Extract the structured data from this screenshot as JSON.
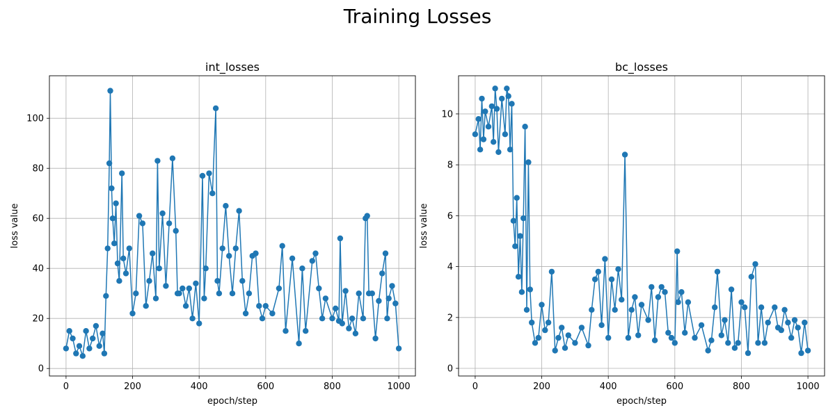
{
  "figure": {
    "title": "Training Losses"
  },
  "chart_data": [
    {
      "type": "line",
      "title": "int_losses",
      "xlabel": "epoch/step",
      "ylabel": "loss value",
      "xlim": [
        -50,
        1050
      ],
      "ylim": [
        -3,
        117
      ],
      "xticks": [
        0,
        200,
        400,
        600,
        800,
        1000
      ],
      "yticks": [
        0,
        20,
        40,
        60,
        80,
        100
      ],
      "grid": true,
      "marker": "circle",
      "series": [
        {
          "color": "#1f77b4",
          "x": [
            0,
            10,
            20,
            30,
            40,
            50,
            60,
            70,
            80,
            90,
            100,
            110,
            115,
            120,
            125,
            130,
            133,
            137,
            140,
            145,
            150,
            155,
            160,
            168,
            172,
            180,
            190,
            200,
            210,
            220,
            230,
            240,
            250,
            260,
            270,
            275,
            280,
            290,
            300,
            310,
            320,
            330,
            335,
            340,
            350,
            360,
            370,
            380,
            390,
            400,
            410,
            415,
            420,
            430,
            440,
            450,
            455,
            460,
            470,
            480,
            490,
            500,
            510,
            520,
            530,
            540,
            550,
            560,
            570,
            580,
            590,
            600,
            620,
            640,
            650,
            660,
            680,
            700,
            710,
            720,
            740,
            750,
            760,
            770,
            780,
            800,
            810,
            820,
            824,
            830,
            840,
            850,
            860,
            870,
            880,
            893,
            900,
            905,
            910,
            920,
            930,
            940,
            950,
            960,
            965,
            970,
            980,
            990,
            1000
          ],
          "y": [
            8,
            15,
            12,
            6,
            9,
            5,
            15,
            8,
            12,
            17,
            9,
            14,
            6,
            29,
            48,
            82,
            111,
            72,
            60,
            50,
            66,
            42,
            35,
            78,
            44,
            38,
            48,
            22,
            30,
            61,
            58,
            25,
            35,
            46,
            28,
            83,
            40,
            62,
            33,
            58,
            84,
            55,
            30,
            30,
            32,
            25,
            32,
            20,
            34,
            18,
            77,
            28,
            40,
            78,
            70,
            104,
            35,
            30,
            48,
            65,
            45,
            30,
            48,
            63,
            35,
            22,
            30,
            45,
            46,
            25,
            20,
            25,
            22,
            32,
            49,
            15,
            44,
            10,
            40,
            15,
            43,
            46,
            32,
            20,
            28,
            20,
            24,
            19,
            52,
            18,
            31,
            16,
            20,
            14,
            30,
            20,
            60,
            61,
            30,
            30,
            12,
            27,
            38,
            46,
            20,
            28,
            33,
            26,
            8
          ]
        }
      ]
    },
    {
      "type": "line",
      "title": "bc_losses",
      "xlabel": "epoch/step",
      "ylabel": "loss value",
      "xlim": [
        -50,
        1050
      ],
      "ylim": [
        -0.3,
        11.5
      ],
      "xticks": [
        0,
        200,
        400,
        600,
        800,
        1000
      ],
      "yticks": [
        0,
        2,
        4,
        6,
        8,
        10
      ],
      "grid": true,
      "marker": "circle",
      "series": [
        {
          "color": "#1f77b4",
          "x": [
            0,
            10,
            15,
            20,
            25,
            30,
            40,
            50,
            55,
            60,
            65,
            70,
            80,
            90,
            95,
            100,
            105,
            110,
            115,
            120,
            125,
            130,
            135,
            140,
            145,
            150,
            155,
            160,
            165,
            170,
            180,
            190,
            200,
            210,
            220,
            230,
            240,
            250,
            260,
            270,
            280,
            300,
            320,
            340,
            350,
            360,
            370,
            380,
            390,
            400,
            410,
            420,
            430,
            440,
            450,
            460,
            470,
            480,
            490,
            500,
            520,
            530,
            540,
            550,
            560,
            570,
            580,
            590,
            600,
            607,
            610,
            620,
            630,
            640,
            660,
            680,
            700,
            710,
            720,
            728,
            740,
            750,
            760,
            770,
            780,
            790,
            800,
            810,
            820,
            830,
            842,
            850,
            860,
            870,
            880,
            900,
            910,
            920,
            930,
            940,
            950,
            960,
            970,
            980,
            990,
            1000
          ],
          "y": [
            9.2,
            9.8,
            8.6,
            10.6,
            9.0,
            10.1,
            9.5,
            10.3,
            8.9,
            11.0,
            10.2,
            8.5,
            10.6,
            9.2,
            11.0,
            10.7,
            8.6,
            10.4,
            5.8,
            4.8,
            6.7,
            3.6,
            5.2,
            3.0,
            5.9,
            9.5,
            2.3,
            8.1,
            3.1,
            1.8,
            1.0,
            1.2,
            2.5,
            1.5,
            1.8,
            3.8,
            0.7,
            1.2,
            1.6,
            0.8,
            1.3,
            1.0,
            1.6,
            0.9,
            2.3,
            3.5,
            3.8,
            1.7,
            4.3,
            1.2,
            3.5,
            2.3,
            3.9,
            2.7,
            8.4,
            1.2,
            2.3,
            2.8,
            1.3,
            2.5,
            1.9,
            3.2,
            1.1,
            2.8,
            3.2,
            3.0,
            1.4,
            1.2,
            1.0,
            4.6,
            2.6,
            3.0,
            1.4,
            2.6,
            1.2,
            1.7,
            0.7,
            1.1,
            2.4,
            3.8,
            1.3,
            1.9,
            1.0,
            3.1,
            0.8,
            1.0,
            2.6,
            2.4,
            0.6,
            3.6,
            4.1,
            1.0,
            2.4,
            1.0,
            1.8,
            2.4,
            1.6,
            1.5,
            2.3,
            1.8,
            1.2,
            1.9,
            1.6,
            0.6,
            1.8,
            0.7
          ]
        }
      ]
    }
  ]
}
